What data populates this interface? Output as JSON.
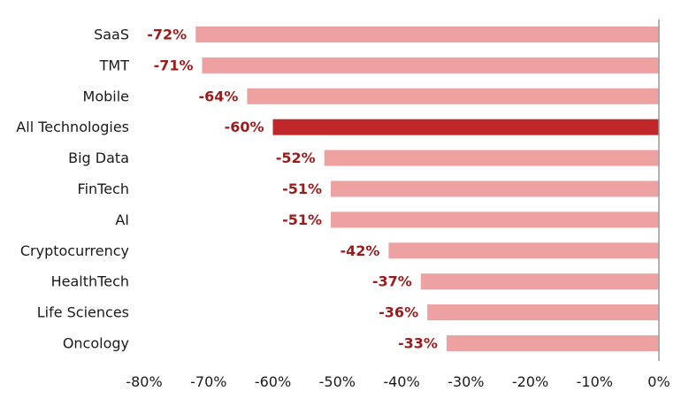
{
  "chart_data": {
    "type": "bar",
    "orientation": "horizontal",
    "categories": [
      "SaaS",
      "TMT",
      "Mobile",
      "All Technologies",
      "Big Data",
      "FinTech",
      "AI",
      "Cryptocurrency",
      "HealthTech",
      "Life Sciences",
      "Oncology"
    ],
    "values": [
      -72,
      -71,
      -64,
      -60,
      -52,
      -51,
      -51,
      -42,
      -37,
      -36,
      -33
    ],
    "value_labels": [
      "-72%",
      "-71%",
      "-64%",
      "-60%",
      "-52%",
      "-51%",
      "-51%",
      "-42%",
      "-37%",
      "-36%",
      "-33%"
    ],
    "highlight_index": 3,
    "xlim": [
      -80,
      0
    ],
    "x_ticks": [
      -80,
      -70,
      -60,
      -50,
      -40,
      -30,
      -20,
      -10,
      0
    ],
    "x_tick_labels": [
      "-80%",
      "-70%",
      "-60%",
      "-50%",
      "-40%",
      "-30%",
      "-20%",
      "-10%",
      "0%"
    ],
    "title": "",
    "xlabel": "",
    "ylabel": "",
    "grid": false,
    "legend": "none",
    "colors": {
      "bar": "#eda1a1",
      "bar_highlight": "#c0262a",
      "value_label": "#9b1c1c",
      "axis": "#999999",
      "text": "#1a1a1a"
    }
  }
}
